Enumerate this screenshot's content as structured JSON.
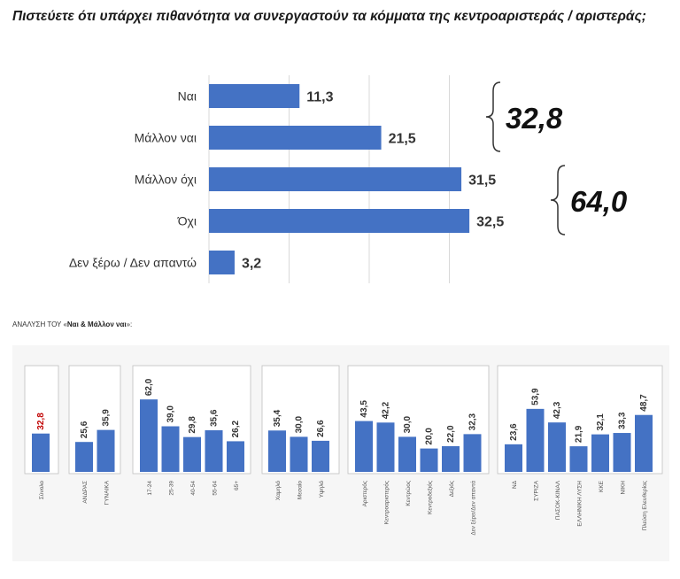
{
  "title_text": "Πιστεύετε ότι υπάρχει πιθανότητα να συνεργαστούν τα κόμματα της κεντροαριστεράς / αριστεράς;",
  "subtitle": {
    "prefix": "ΑΝΑΛΥΣΗ ΤΟΥ «",
    "bold": "Ναι & Μάλλον ναι",
    "suffix": "»:"
  },
  "colors": {
    "bar": "#4472c4",
    "highlight": "#c00000"
  },
  "chart_data": [
    {
      "type": "bar",
      "orientation": "horizontal",
      "categories": [
        "Ναι",
        "Μάλλον ναι",
        "Μάλλον όχι",
        "Όχι",
        "Δεν ξέρω / Δεν απαντώ"
      ],
      "values": [
        11.3,
        21.5,
        31.5,
        32.5,
        3.2
      ],
      "value_labels": [
        "11,3",
        "21,5",
        "31,5",
        "32,5",
        "3,2"
      ],
      "xlim": [
        0,
        35
      ],
      "grid": true,
      "annotations": [
        {
          "text": "32,8",
          "groups": [
            "Ναι",
            "Μάλλον ναι"
          ]
        },
        {
          "text": "64,0",
          "groups": [
            "Μάλλον όχι",
            "Όχι"
          ]
        }
      ]
    },
    {
      "type": "bar",
      "orientation": "vertical",
      "ylim": [
        0,
        70
      ],
      "groups": [
        {
          "categories": [
            "Σύνολο"
          ],
          "values": [
            32.8
          ],
          "labels": [
            "32,8"
          ],
          "highlight": true
        },
        {
          "categories": [
            "ΑΝΔΡΑΣ",
            "ΓΥΝΑΙΚΑ"
          ],
          "values": [
            25.6,
            35.9
          ],
          "labels": [
            "25,6",
            "35,9"
          ]
        },
        {
          "categories": [
            "17-24",
            "25-39",
            "40-54",
            "55-64",
            "65+"
          ],
          "values": [
            62.0,
            39.0,
            29.8,
            35.6,
            26.2
          ],
          "labels": [
            "62,0",
            "39,0",
            "29,8",
            "35,6",
            "26,2"
          ]
        },
        {
          "categories": [
            "Χαμηλό",
            "Μεσαίο",
            "Υψηλό"
          ],
          "values": [
            35.4,
            30.0,
            26.6
          ],
          "labels": [
            "35,4",
            "30,0",
            "26,6"
          ]
        },
        {
          "categories": [
            "Αριστερός",
            "Κεντροαριστερός",
            "Κεντρώος",
            "Κεντροδεξιός",
            "Δεξιός",
            "Δεν ξέρει/Δεν απαντά"
          ],
          "values": [
            43.5,
            42.2,
            30.0,
            20.0,
            22.0,
            32.3
          ],
          "labels": [
            "43,5",
            "42,2",
            "30,0",
            "20,0",
            "22,0",
            "32,3"
          ]
        },
        {
          "categories": [
            "ΝΔ",
            "ΣΥΡΙΖΑ",
            "ΠΑΣΟΚ-ΚΙΝΑΛ",
            "ΕΛΛΗΝΙΚΗ ΛΥΣΗ",
            "ΚΚΕ",
            "ΝΙΚΗ",
            "Πλεύση Ελευθερίας"
          ],
          "values": [
            23.6,
            53.9,
            42.3,
            21.9,
            32.1,
            33.3,
            48.7
          ],
          "labels": [
            "23,6",
            "53,9",
            "42,3",
            "21,9",
            "32,1",
            "33,3",
            "48,7"
          ]
        }
      ]
    }
  ]
}
